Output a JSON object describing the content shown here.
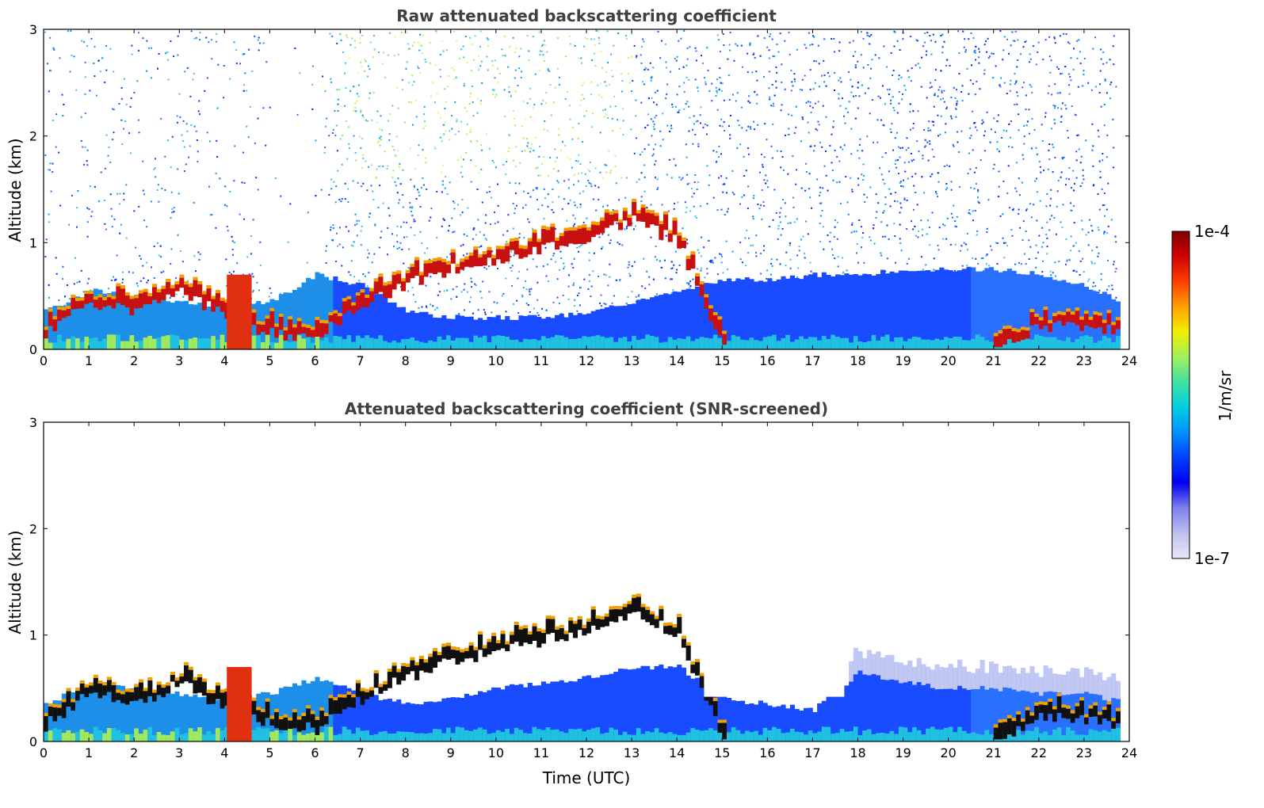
{
  "chart_data": [
    {
      "type": "heatmap",
      "title": "Raw attenuated backscattering coefficient",
      "xlabel": "",
      "ylabel": "Altitude (km)",
      "xlim": [
        0,
        24
      ],
      "ylim": [
        0,
        3
      ],
      "xticks": [
        "0",
        "1",
        "2",
        "3",
        "4",
        "5",
        "6",
        "7",
        "8",
        "9",
        "10",
        "11",
        "12",
        "13",
        "14",
        "15",
        "16",
        "17",
        "18",
        "19",
        "20",
        "21",
        "22",
        "23",
        "24"
      ],
      "yticks": [
        "0",
        "1",
        "2",
        "3"
      ],
      "layer_top_km": [
        0.35,
        0.55,
        0.5,
        0.45,
        0.4,
        0.45,
        0.7,
        0.6,
        0.35,
        0.3,
        0.3,
        0.3,
        0.35,
        0.45,
        0.55,
        0.65,
        0.65,
        0.7,
        0.7,
        0.75,
        0.75,
        0.75,
        0.7,
        0.6,
        0.4
      ],
      "cloud_band_km": [
        0.15,
        0.45,
        0.35,
        0.55,
        0.3,
        0.15,
        0.12,
        0.4,
        0.6,
        0.75,
        0.85,
        0.95,
        1.05,
        1.2,
        1.0,
        0,
        0,
        0,
        0,
        0,
        0,
        0,
        0.22,
        0.22,
        0.15
      ]
    },
    {
      "type": "heatmap",
      "title": "Attenuated backscattering coefficient (SNR-screened)",
      "xlabel": "Time (UTC)",
      "ylabel": "Altitude (km)",
      "xlim": [
        0,
        24
      ],
      "ylim": [
        0,
        3
      ],
      "xticks": [
        "0",
        "1",
        "2",
        "3",
        "4",
        "5",
        "6",
        "7",
        "8",
        "9",
        "10",
        "11",
        "12",
        "13",
        "14",
        "15",
        "16",
        "17",
        "18",
        "19",
        "20",
        "21",
        "22",
        "23",
        "24"
      ],
      "yticks": [
        "0",
        "1",
        "2",
        "3"
      ],
      "layer_top_km": [
        0.35,
        0.55,
        0.5,
        0.45,
        0.4,
        0.45,
        0.6,
        0.45,
        0.35,
        0.4,
        0.5,
        0.55,
        0.6,
        0.7,
        0.7,
        0.4,
        0.35,
        0.3,
        0.65,
        0.55,
        0.5,
        0.5,
        0.45,
        0.45,
        0.35
      ],
      "cloud_band_km": [
        0.15,
        0.45,
        0.35,
        0.55,
        0.3,
        0.15,
        0.12,
        0.4,
        0.6,
        0.75,
        0.85,
        0.95,
        1.05,
        1.2,
        1.0,
        0,
        0,
        0,
        0,
        0,
        0,
        0,
        0.22,
        0.22,
        0.15
      ]
    }
  ],
  "colorbar": {
    "label": "1/m/sr",
    "max_label": "1e-4",
    "min_label": "1e-7",
    "range": [
      "1e-7",
      "1e-4"
    ],
    "colors": [
      "#e8e8f8",
      "#c0c0f0",
      "#8080f0",
      "#0000f0",
      "#0040ff",
      "#0090ff",
      "#00d0e0",
      "#40e0a0",
      "#a0f060",
      "#f0f000",
      "#ffa000",
      "#ff4000",
      "#d00000",
      "#800000"
    ]
  }
}
